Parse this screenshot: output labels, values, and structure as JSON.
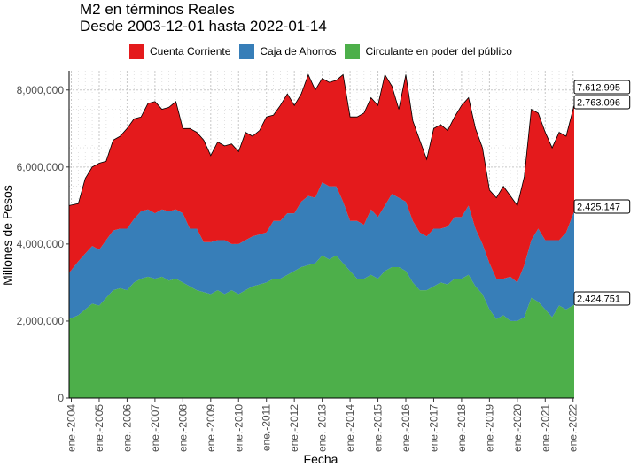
{
  "chart_data": {
    "type": "area",
    "stacked": true,
    "title": "M2 en términos Reales",
    "subtitle": "Desde 2003-12-01 hasta 2022-01-14",
    "xlabel": "Fecha",
    "ylabel": "Millones de Pesos",
    "ylim": [
      0,
      8500000
    ],
    "y_ticks": [
      0,
      2000000,
      4000000,
      6000000,
      8000000
    ],
    "y_tick_labels": [
      "0",
      "2,000,000",
      "4,000,000",
      "6,000,000",
      "8,000,000"
    ],
    "x_tick_labels": [
      "ene.-2004",
      "ene.-2005",
      "ene.-2006",
      "ene.-2007",
      "ene.-2008",
      "ene.-2009",
      "ene.-2010",
      "ene.-2011",
      "ene.-2012",
      "ene.-2013",
      "ene.-2014",
      "ene.-2015",
      "ene.-2016",
      "ene.-2017",
      "ene.-2018",
      "ene.-2019",
      "ene.-2020",
      "ene.-2021",
      "ene.-2022"
    ],
    "x_tick_years": [
      2004,
      2005,
      2006,
      2007,
      2008,
      2009,
      2010,
      2011,
      2012,
      2013,
      2014,
      2015,
      2016,
      2017,
      2018,
      2019,
      2020,
      2021,
      2022
    ],
    "x_range": [
      2003.92,
      2022.04
    ],
    "x": [
      2003.92,
      2004.25,
      2004.5,
      2004.75,
      2005.0,
      2005.25,
      2005.5,
      2005.75,
      2006.0,
      2006.25,
      2006.5,
      2006.75,
      2007.0,
      2007.25,
      2007.5,
      2007.75,
      2008.0,
      2008.25,
      2008.5,
      2008.75,
      2009.0,
      2009.25,
      2009.5,
      2009.75,
      2010.0,
      2010.25,
      2010.5,
      2010.75,
      2011.0,
      2011.25,
      2011.5,
      2011.75,
      2012.0,
      2012.25,
      2012.5,
      2012.75,
      2013.0,
      2013.25,
      2013.5,
      2013.75,
      2014.0,
      2014.25,
      2014.5,
      2014.75,
      2015.0,
      2015.25,
      2015.5,
      2015.75,
      2016.0,
      2016.25,
      2016.5,
      2016.75,
      2017.0,
      2017.25,
      2017.5,
      2017.75,
      2018.0,
      2018.25,
      2018.5,
      2018.75,
      2019.0,
      2019.25,
      2019.5,
      2019.75,
      2020.0,
      2020.25,
      2020.5,
      2020.75,
      2021.0,
      2021.25,
      2021.5,
      2021.75,
      2022.04
    ],
    "grid": true,
    "legend_position": "top",
    "series": [
      {
        "name": "Circulante en poder del público",
        "color": "#4DAF4A",
        "values": [
          2050000,
          2150000,
          2300000,
          2450000,
          2400000,
          2600000,
          2800000,
          2850000,
          2800000,
          3000000,
          3100000,
          3150000,
          3100000,
          3150000,
          3050000,
          3100000,
          3000000,
          2900000,
          2800000,
          2750000,
          2700000,
          2800000,
          2700000,
          2800000,
          2700000,
          2800000,
          2900000,
          2950000,
          3000000,
          3100000,
          3100000,
          3200000,
          3300000,
          3400000,
          3450000,
          3500000,
          3700000,
          3600000,
          3700000,
          3500000,
          3300000,
          3100000,
          3100000,
          3200000,
          3100000,
          3300000,
          3400000,
          3400000,
          3300000,
          3000000,
          2800000,
          2800000,
          2900000,
          3000000,
          2950000,
          3100000,
          3100000,
          3200000,
          2900000,
          2700000,
          2300000,
          2050000,
          2150000,
          2000000,
          2000000,
          2100000,
          2600000,
          2500000,
          2300000,
          2100000,
          2400000,
          2300000,
          2424751
        ]
      },
      {
        "name": "Caja de Ahorros",
        "color": "#377EB8",
        "values": [
          1200000,
          1400000,
          1450000,
          1500000,
          1450000,
          1500000,
          1550000,
          1550000,
          1600000,
          1650000,
          1750000,
          1750000,
          1700000,
          1750000,
          1800000,
          1800000,
          1800000,
          1500000,
          1600000,
          1300000,
          1350000,
          1300000,
          1400000,
          1200000,
          1300000,
          1300000,
          1300000,
          1300000,
          1300000,
          1500000,
          1500000,
          1600000,
          1500000,
          1700000,
          1800000,
          1700000,
          1900000,
          1900000,
          1800000,
          1600000,
          1300000,
          1500000,
          1400000,
          1700000,
          1600000,
          1700000,
          1900000,
          1800000,
          1800000,
          1600000,
          1500000,
          1400000,
          1500000,
          1400000,
          1500000,
          1600000,
          1600000,
          1800000,
          1500000,
          1300000,
          1200000,
          1050000,
          950000,
          1150000,
          1000000,
          1350000,
          1500000,
          1900000,
          1800000,
          2000000,
          1700000,
          2000000,
          2425147
        ]
      },
      {
        "name": "Cuenta Corriente",
        "color": "#E41A1C",
        "values": [
          1750000,
          1500000,
          1950000,
          2050000,
          2250000,
          2050000,
          2350000,
          2400000,
          2600000,
          2600000,
          2450000,
          2750000,
          2900000,
          2600000,
          2700000,
          2800000,
          2200000,
          2600000,
          2500000,
          2650000,
          2250000,
          2550000,
          2450000,
          2600000,
          2400000,
          2800000,
          2600000,
          2700000,
          3000000,
          2750000,
          3000000,
          3100000,
          2800000,
          2800000,
          3150000,
          2800000,
          2700000,
          2700000,
          2750000,
          3300000,
          2700000,
          2700000,
          2900000,
          2900000,
          2900000,
          3400000,
          2800000,
          2300000,
          3300000,
          2600000,
          2400000,
          2000000,
          2600000,
          2700000,
          2500000,
          2600000,
          2900000,
          2800000,
          2600000,
          2500000,
          1900000,
          2100000,
          2400000,
          2100000,
          2000000,
          2300000,
          3400000,
          3000000,
          2800000,
          2400000,
          2800000,
          2500000,
          2763096
        ]
      }
    ],
    "end_labels": [
      "7.612.995",
      "2.763.096",
      "2.425.147",
      "2.424.751"
    ],
    "end_label_values": [
      7612995,
      7612995,
      4849898,
      2424751
    ]
  }
}
